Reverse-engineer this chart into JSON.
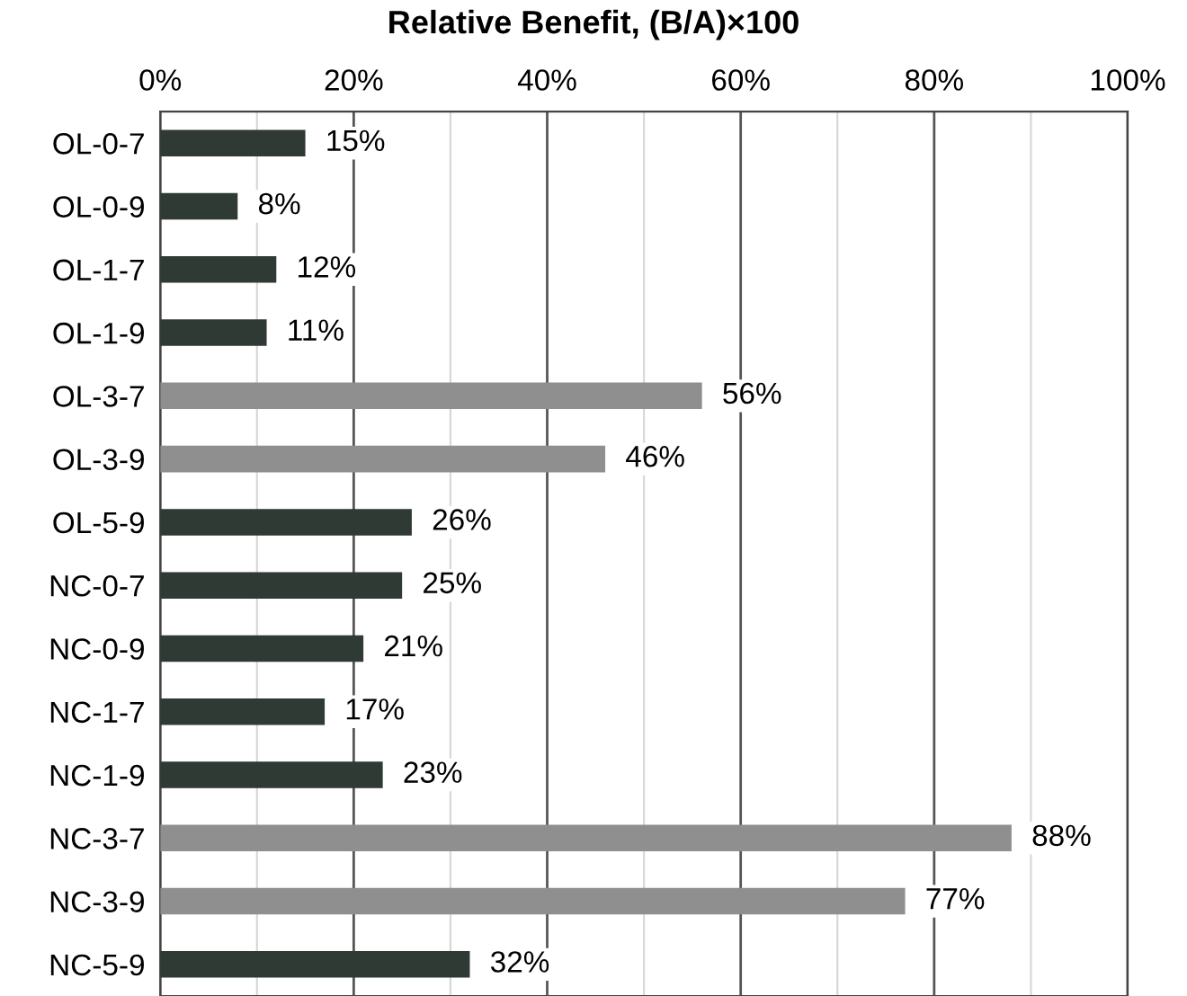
{
  "chart_data": {
    "type": "bar",
    "orientation": "horizontal",
    "title": "Relative Benefit, (B/A)×100",
    "categories": [
      "OL-0-7",
      "OL-0-9",
      "OL-1-7",
      "OL-1-9",
      "OL-3-7",
      "OL-3-9",
      "OL-5-9",
      "NC-0-7",
      "NC-0-9",
      "NC-1-7",
      "NC-1-9",
      "NC-3-7",
      "NC-3-9",
      "NC-5-9"
    ],
    "values": [
      15,
      8,
      12,
      11,
      56,
      46,
      26,
      25,
      21,
      17,
      23,
      88,
      77,
      32
    ],
    "value_labels": [
      "15%",
      "8%",
      "12%",
      "11%",
      "56%",
      "46%",
      "26%",
      "25%",
      "21%",
      "17%",
      "23%",
      "88%",
      "77%",
      "32%"
    ],
    "colors": [
      "#2e3a33",
      "#2e3a33",
      "#2e3a33",
      "#2e3a33",
      "#8f8f8f",
      "#8f8f8f",
      "#2e3a33",
      "#2e3a33",
      "#2e3a33",
      "#2e3a33",
      "#2e3a33",
      "#8f8f8f",
      "#8f8f8f",
      "#2e3a33"
    ],
    "xlim": [
      0,
      100
    ],
    "xticks": [
      {
        "value": 0,
        "label": "0%"
      },
      {
        "value": 10,
        "label": null
      },
      {
        "value": 20,
        "label": "20%"
      },
      {
        "value": 30,
        "label": null
      },
      {
        "value": 40,
        "label": "40%"
      },
      {
        "value": 50,
        "label": null
      },
      {
        "value": 60,
        "label": "60%"
      },
      {
        "value": 70,
        "label": null
      },
      {
        "value": 80,
        "label": "80%"
      },
      {
        "value": 90,
        "label": null
      },
      {
        "value": 100,
        "label": "100%"
      }
    ],
    "grid": "x",
    "legend": false
  }
}
